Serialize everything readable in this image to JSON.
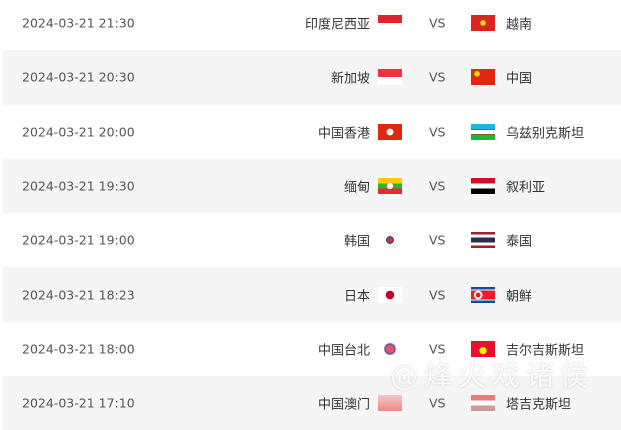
{
  "vs_label": "VS",
  "matches": [
    {
      "time": "2024-03-21 21:30",
      "home": "印度尼西亚",
      "home_flag": "indonesia-flag",
      "away": "越南",
      "away_flag": "vietnam-flag"
    },
    {
      "time": "2024-03-21 20:30",
      "home": "新加坡",
      "home_flag": "singapore-flag",
      "away": "中国",
      "away_flag": "china-flag"
    },
    {
      "time": "2024-03-21 20:00",
      "home": "中国香港",
      "home_flag": "hong-kong-flag",
      "away": "乌兹别克斯坦",
      "away_flag": "uzbekistan-flag"
    },
    {
      "time": "2024-03-21 19:30",
      "home": "缅甸",
      "home_flag": "myanmar-flag",
      "away": "叙利亚",
      "away_flag": "syria-flag"
    },
    {
      "time": "2024-03-21 19:00",
      "home": "韩国",
      "home_flag": "south-korea-flag",
      "away": "泰国",
      "away_flag": "thailand-flag"
    },
    {
      "time": "2024-03-21 18:23",
      "home": "日本",
      "home_flag": "japan-flag",
      "away": "朝鲜",
      "away_flag": "north-korea-flag"
    },
    {
      "time": "2024-03-21 18:00",
      "home": "中国台北",
      "home_flag": "chinese-taipei-flag",
      "away": "吉尔吉斯斯坦",
      "away_flag": "kyrgyzstan-flag"
    },
    {
      "time": "2024-03-21 17:10",
      "home": "中国澳门",
      "home_flag": "macau-flag",
      "away": "塔吉克斯坦",
      "away_flag": "tajikistan-flag"
    }
  ],
  "watermark": "@烽火戏诸侯"
}
